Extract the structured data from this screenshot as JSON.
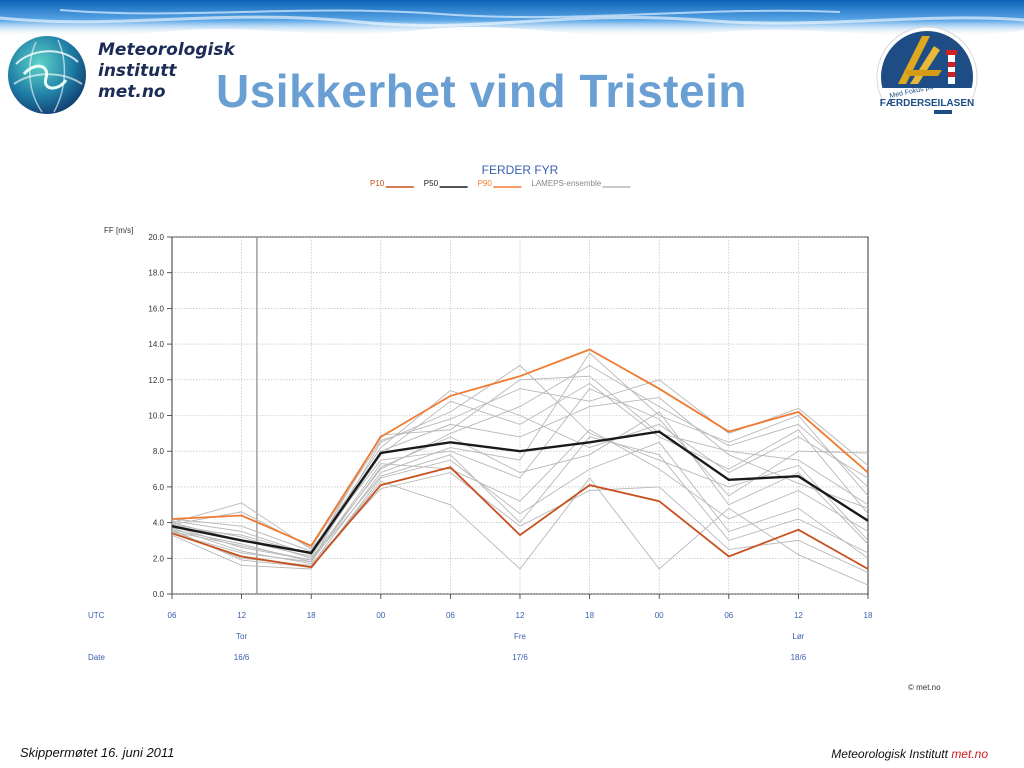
{
  "header": {
    "org_line1": "Meteorologisk",
    "org_line2": "institutt",
    "org_line3": "met.no",
    "title": "Usikkerhet vind Tristein",
    "badge_top": "Med Fokus på",
    "badge_main": "FÆRDERSEILASEN"
  },
  "footer": {
    "left": "Skippermøtet 16. juni 2011",
    "right_prefix": "Meteorologisk Institutt",
    "right_accent": "met.no"
  },
  "colors": {
    "title": "#6a9fd4",
    "p10": "#c8501e",
    "p50": "#1a1a1a",
    "p90": "#f07a30",
    "ensemble": "#b8b8b8"
  },
  "chart_data": {
    "type": "line",
    "title": "FERDER FYR",
    "ylabel": "FF [m/s]",
    "ylim": [
      0,
      20
    ],
    "yticks": [
      "0.0",
      "2.0",
      "4.0",
      "6.0",
      "8.0",
      "10.0",
      "12.0",
      "14.0",
      "16.0",
      "18.0",
      "20.0"
    ],
    "x_utc": [
      "06",
      "12",
      "18",
      "00",
      "06",
      "12",
      "18",
      "00",
      "06",
      "12",
      "18"
    ],
    "row_labels": {
      "utc": "UTC",
      "date": "Date"
    },
    "days": [
      {
        "name": "Tor",
        "date": "16/6",
        "at": 1
      },
      {
        "name": "Fre",
        "date": "17/6",
        "at": 5
      },
      {
        "name": "Lør",
        "date": "18/6",
        "at": 9
      }
    ],
    "now_marker_index": 1.22,
    "grid": true,
    "legend_position": "top",
    "series": [
      {
        "name": "P10",
        "color_key": "p10",
        "values": [
          3.4,
          2.1,
          1.5,
          6.1,
          7.1,
          3.3,
          6.1,
          5.2,
          2.1,
          3.6,
          1.4
        ]
      },
      {
        "name": "P50",
        "color_key": "p50",
        "values": [
          3.8,
          3.0,
          2.3,
          7.9,
          8.5,
          8.0,
          8.5,
          9.1,
          6.4,
          6.6,
          4.1
        ]
      },
      {
        "name": "P90",
        "color_key": "p90",
        "values": [
          4.2,
          4.4,
          2.7,
          8.8,
          11.1,
          12.2,
          13.7,
          11.5,
          9.1,
          10.2,
          6.8
        ]
      }
    ],
    "ensemble_label": "LAMEPS-ensemble",
    "ensemble_members": [
      [
        3.9,
        3.2,
        2.0,
        7.0,
        9.0,
        10.5,
        12.8,
        10.5,
        8.3,
        9.5,
        6.0
      ],
      [
        3.6,
        2.8,
        1.8,
        8.5,
        10.2,
        12.8,
        9.0,
        7.5,
        6.0,
        7.2,
        3.0
      ],
      [
        4.0,
        5.1,
        2.5,
        7.5,
        8.0,
        6.5,
        11.5,
        9.8,
        5.5,
        8.0,
        7.9
      ],
      [
        3.3,
        1.6,
        1.4,
        6.5,
        7.5,
        4.5,
        7.0,
        8.5,
        3.5,
        4.8,
        2.0
      ],
      [
        4.1,
        3.5,
        2.2,
        8.0,
        9.5,
        8.8,
        10.5,
        11.0,
        7.8,
        6.2,
        4.8
      ],
      [
        3.7,
        2.4,
        1.7,
        5.9,
        6.8,
        3.8,
        5.8,
        6.0,
        2.5,
        3.0,
        1.2
      ],
      [
        3.5,
        2.0,
        1.6,
        6.8,
        8.2,
        7.5,
        13.5,
        10.0,
        8.5,
        10.0,
        5.5
      ],
      [
        4.2,
        3.8,
        2.4,
        8.2,
        11.4,
        10.0,
        8.2,
        9.5,
        6.8,
        8.8,
        6.5
      ],
      [
        3.8,
        2.6,
        1.9,
        7.3,
        7.0,
        5.2,
        9.2,
        7.0,
        4.2,
        5.8,
        3.5
      ],
      [
        3.9,
        4.6,
        2.6,
        8.6,
        9.8,
        11.5,
        10.8,
        12.0,
        9.0,
        10.4,
        7.2
      ],
      [
        3.6,
        1.9,
        1.5,
        6.3,
        5.0,
        1.4,
        6.5,
        1.4,
        4.8,
        2.2,
        0.5
      ],
      [
        4.0,
        3.0,
        2.1,
        7.8,
        10.8,
        9.5,
        11.8,
        8.8,
        7.0,
        9.2,
        4.5
      ],
      [
        3.4,
        2.3,
        1.8,
        7.1,
        8.8,
        6.8,
        7.8,
        10.2,
        5.0,
        6.8,
        2.8
      ],
      [
        3.7,
        3.3,
        2.2,
        8.9,
        9.2,
        12.0,
        12.2,
        9.0,
        8.0,
        7.5,
        5.0
      ],
      [
        3.5,
        2.7,
        1.9,
        6.6,
        7.8,
        4.0,
        8.8,
        7.8,
        3.0,
        4.2,
        2.3
      ]
    ],
    "credit": "© met.no"
  }
}
